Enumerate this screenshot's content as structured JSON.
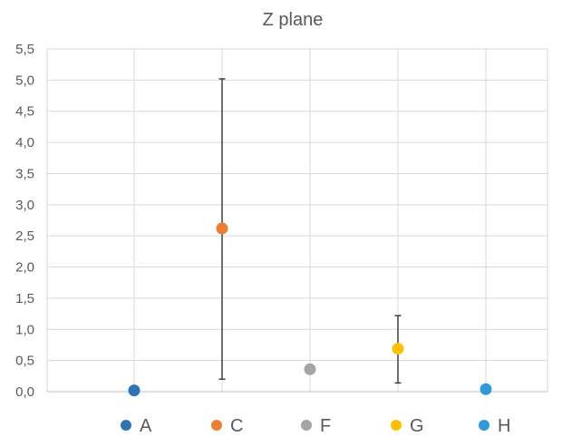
{
  "chart_data": {
    "type": "scatter",
    "title": "Z plane",
    "xlabel": "",
    "ylabel": "",
    "ylim": [
      0,
      5.5
    ],
    "ytick_step": 0.5,
    "y_ticks": [
      "0,0",
      "0,5",
      "1,0",
      "1,5",
      "2,0",
      "2,5",
      "3,0",
      "3,5",
      "4,0",
      "4,5",
      "5,0",
      "5,5"
    ],
    "grid": true,
    "legend_position": "bottom",
    "series": [
      {
        "name": "A",
        "x": 1,
        "y": 0.02,
        "color": "#2E75B6",
        "err_low": null,
        "err_high": null
      },
      {
        "name": "C",
        "x": 2,
        "y": 2.62,
        "color": "#ED7D31",
        "err_low": 0.2,
        "err_high": 5.02
      },
      {
        "name": "F",
        "x": 3,
        "y": 0.36,
        "color": "#A5A5A5",
        "err_low": 0.3,
        "err_high": 0.42
      },
      {
        "name": "G",
        "x": 4,
        "y": 0.69,
        "color": "#FFC000",
        "err_low": 0.14,
        "err_high": 1.22
      },
      {
        "name": "H",
        "x": 5,
        "y": 0.04,
        "color": "#2E9BD6",
        "err_low": null,
        "err_high": null
      }
    ]
  }
}
